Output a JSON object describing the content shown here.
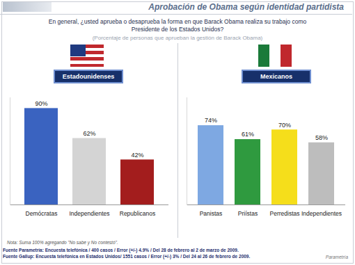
{
  "title": "Aprobación de Obama según identidad partidista",
  "question": "En general, ¿usted aprueba o desaprueba la forma en que Barack Obama realiza su trabajo como Presidente de los Estados Unidos?",
  "subtitle": "(Porcentaje de personas que aprueban la gestión de Barack Obama)",
  "note": "Nota: Suma 100% agregando \"No sabe y No contestó\".",
  "sources": [
    "Fuente Parametría: Encuesta telefónica / 400 casos / Error (+/-) 4.9% / Del 28 de febrero al 2 de marzo de 2009.",
    "Fuente Gallup: Encuesta telefónica en Estados Unidos/ 1551 casos / Error (+/-) 3% / Del 24 al 26 de febrero de 2009."
  ],
  "brand": "Parametría",
  "chart_data": [
    {
      "type": "bar",
      "title": "Estadounidenses",
      "categories": [
        "Demócratas",
        "Independientes",
        "Republicanos"
      ],
      "values": [
        90,
        62,
        42
      ],
      "value_labels": [
        "90%",
        "62%",
        "42%"
      ],
      "colors": [
        "#3a63c0",
        "#d4d4d4",
        "#a31d1d"
      ],
      "ylim": [
        0,
        100
      ],
      "yticks": [],
      "data_labels": true,
      "tick_labels": "x"
    },
    {
      "type": "bar",
      "title": "Mexicanos",
      "categories": [
        "Panistas",
        "Priístas",
        "Perredistas",
        "Independientes"
      ],
      "values": [
        74,
        61,
        70,
        58
      ],
      "value_labels": [
        "74%",
        "61%",
        "70%",
        "58%"
      ],
      "colors": [
        "#7ea8e2",
        "#2f9a3f",
        "#f5de1b",
        "#bdbdbd"
      ],
      "ylim": [
        0,
        100
      ],
      "yticks": [],
      "data_labels": true,
      "tick_labels": "x"
    }
  ]
}
